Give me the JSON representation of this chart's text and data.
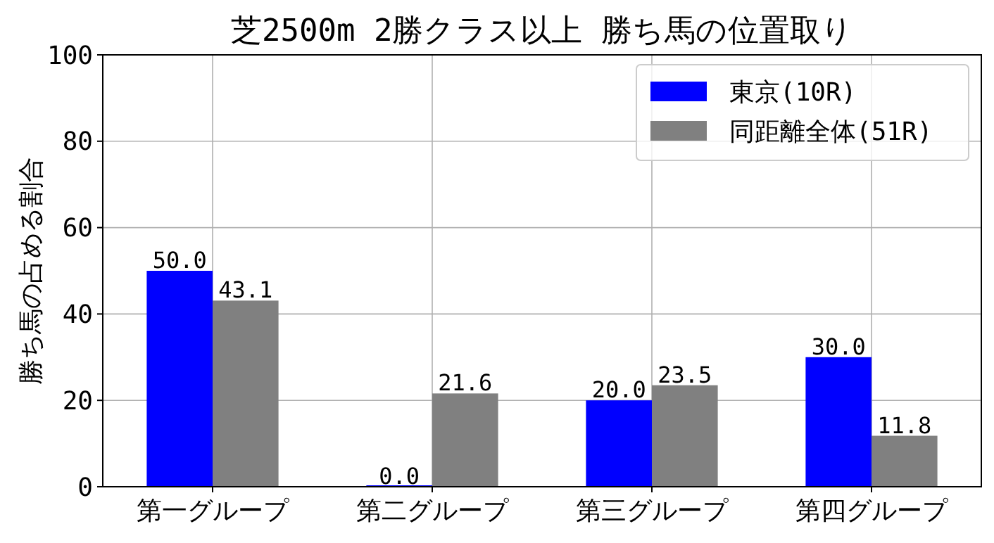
{
  "chart_data": {
    "type": "bar",
    "title": "芝2500m 2勝クラス以上 勝ち馬の位置取り",
    "ylabel": "勝ち馬の占める割合",
    "categories": [
      "第一グループ",
      "第二グループ",
      "第三グループ",
      "第四グループ"
    ],
    "series": [
      {
        "name": "東京(10R)",
        "color": "#0000ff",
        "values": [
          50.0,
          0.0,
          20.0,
          30.0
        ],
        "value_labels": [
          "50.0",
          "0.0",
          "20.0",
          "30.0"
        ]
      },
      {
        "name": "同距離全体(51R)",
        "color": "#808080",
        "values": [
          43.1,
          21.6,
          23.5,
          11.8
        ],
        "value_labels": [
          "43.1",
          "21.6",
          "23.5",
          "11.8"
        ]
      }
    ],
    "ylim": [
      0,
      100
    ],
    "yticks": [
      0,
      20,
      40,
      60,
      80,
      100
    ],
    "grid": true,
    "legend": "top right"
  }
}
